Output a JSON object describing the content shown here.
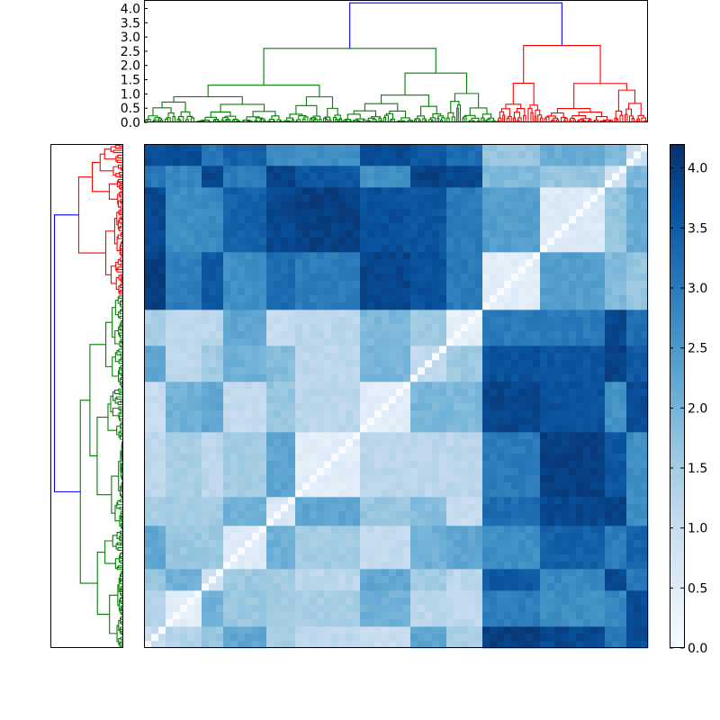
{
  "chart_data": [
    {
      "type": "dendrogram",
      "orientation": "top",
      "ylim": [
        0,
        4.3
      ],
      "yticks": [
        0.0,
        0.5,
        1.0,
        1.5,
        2.0,
        2.5,
        3.0,
        3.5,
        4.0
      ],
      "ytick_labels": [
        "0.0",
        "0.5",
        "1.0",
        "1.5",
        "2.0",
        "2.5",
        "3.0",
        "3.5",
        "4.0"
      ],
      "root_height": 4.2,
      "clusters": [
        {
          "name": "green",
          "color": "#008000",
          "leaf_fraction": [
            0.0,
            0.7
          ],
          "merge_height": 2.6
        },
        {
          "name": "red",
          "color": "#ff0000",
          "leaf_fraction": [
            0.7,
            1.0
          ],
          "merge_height": 2.7
        }
      ],
      "link_color": "#0000ff"
    },
    {
      "type": "dendrogram",
      "orientation": "left",
      "root_height": 4.2,
      "clusters": [
        {
          "name": "red",
          "color": "#ff0000",
          "leaf_fraction": [
            0.0,
            0.3
          ],
          "merge_height": 2.7
        },
        {
          "name": "green",
          "color": "#008000",
          "leaf_fraction": [
            0.3,
            1.0
          ],
          "merge_height": 2.6
        }
      ],
      "link_color": "#0000ff"
    },
    {
      "type": "heatmap",
      "colormap": "Blues",
      "vmin": 0.0,
      "vmax": 4.2,
      "colorbar_ticks": [
        0.0,
        0.5,
        1.0,
        1.5,
        2.0,
        2.5,
        3.0,
        3.5,
        4.0
      ],
      "colorbar_labels": [
        "0.0",
        "0.5",
        "1.0",
        "1.5",
        "2.0",
        "2.5",
        "3.0",
        "3.5",
        "4.0"
      ],
      "description": "symmetric distance matrix ordered by dendrogram leaves; diagonal ~0"
    }
  ]
}
